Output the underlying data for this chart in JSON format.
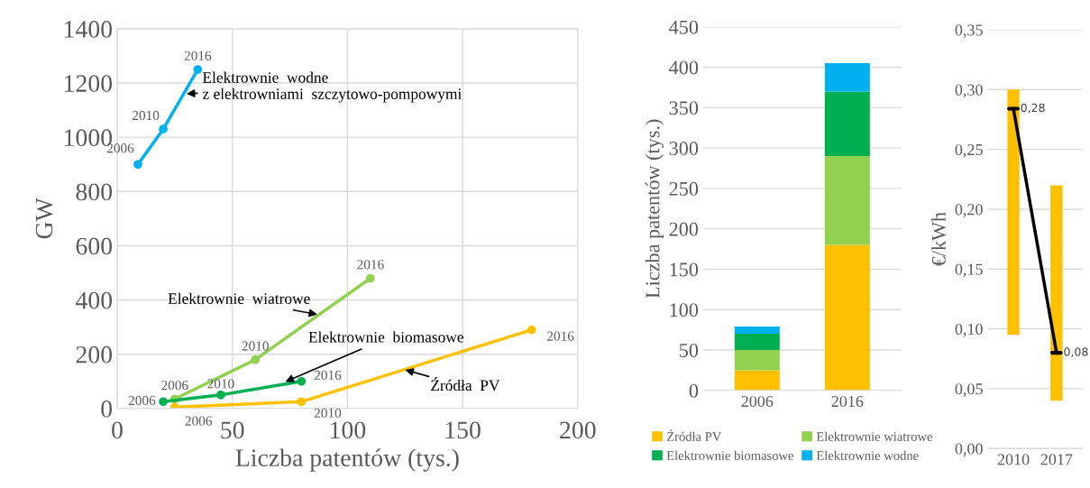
{
  "chart_data": [
    {
      "type": "line",
      "xlabel": "Liczba patentów (tys.)",
      "ylabel": "GW",
      "xlim": [
        0,
        200
      ],
      "ylim": [
        0,
        1400
      ],
      "xticks": [
        0,
        50,
        100,
        150,
        200
      ],
      "yticks": [
        0,
        200,
        400,
        600,
        800,
        1000,
        1200,
        1400
      ],
      "grid": true,
      "marker": "circle",
      "line_style": "solid",
      "series": [
        {
          "color": "#00b0f0",
          "x": [
            9,
            20,
            35
          ],
          "values": [
            900,
            1030,
            1250
          ]
        },
        {
          "color": "#92d050",
          "x": [
            25,
            60,
            110
          ],
          "values": [
            35,
            180,
            480
          ]
        },
        {
          "color": "#00b050",
          "x": [
            20,
            45,
            80
          ],
          "values": [
            25,
            50,
            100
          ]
        },
        {
          "color": "#ffc000",
          "x": [
            25,
            80,
            180
          ],
          "values": [
            5,
            25,
            290
          ]
        }
      ],
      "annotations": [
        {
          "text": "Elektrownie  wodne\nz elektrowniami  szczytowo-pompowymi",
          "x": 29,
          "y": 1160
        },
        {
          "text": "Elektrownie  wiatrowe",
          "x": 88,
          "y": 345
        },
        {
          "text": "Elektrownie  biomasowe",
          "x": 72,
          "y": 95
        },
        {
          "text": "Źródła  PV",
          "x": 124,
          "y": 145
        },
        {
          "text": "2006",
          "x": 9,
          "y": 900
        },
        {
          "text": "2010",
          "x": 20,
          "y": 1030
        },
        {
          "text": "2016",
          "x": 35,
          "y": 1250
        },
        {
          "text": "2006",
          "x": 25,
          "y": 35
        },
        {
          "text": "2010",
          "x": 60,
          "y": 180
        },
        {
          "text": "2016",
          "x": 110,
          "y": 480
        },
        {
          "text": "2006",
          "x": 20,
          "y": 25
        },
        {
          "text": "2010",
          "x": 45,
          "y": 50
        },
        {
          "text": "2016",
          "x": 80,
          "y": 100
        },
        {
          "text": "2006",
          "x": 25,
          "y": 5
        },
        {
          "text": "2010",
          "x": 80,
          "y": 25
        },
        {
          "text": "2016",
          "x": 180,
          "y": 290
        }
      ]
    },
    {
      "type": "bar",
      "stacked": true,
      "ylabel": "Liczba patentów (tys.)",
      "categories": [
        "2006",
        "2016"
      ],
      "ylim": [
        0,
        450
      ],
      "yticks": [
        0,
        50,
        100,
        150,
        200,
        250,
        300,
        350,
        400,
        450
      ],
      "grid": "y",
      "legend": "bottom",
      "series": [
        {
          "name": "Źródła PV",
          "color": "#ffc000",
          "values": [
            25,
            180
          ]
        },
        {
          "name": "Elektrownie wiatrowe",
          "color": "#92d050",
          "values": [
            25,
            110
          ]
        },
        {
          "name": "Elektrownie biomasowe",
          "color": "#00b050",
          "values": [
            20,
            80
          ]
        },
        {
          "name": "Elektrownie wodne",
          "color": "#00b0f0",
          "values": [
            9,
            35
          ]
        }
      ]
    },
    {
      "type": "bar",
      "ylabel": "€/kWh",
      "categories": [
        "2010",
        "2017"
      ],
      "ylim": [
        0,
        0.35
      ],
      "yticks": [
        {
          "value": 0,
          "label": "0,00"
        },
        {
          "value": 0.05,
          "label": "0,05"
        },
        {
          "value": 0.1,
          "label": "0,10"
        },
        {
          "value": 0.15,
          "label": "0,15"
        },
        {
          "value": 0.2,
          "label": "0,20"
        },
        {
          "value": 0.25,
          "label": "0,25"
        },
        {
          "value": 0.3,
          "label": "0,30"
        },
        {
          "value": 0.35,
          "label": "0,35"
        }
      ],
      "grid": "y",
      "series": [
        {
          "type": "bar",
          "color": "#ffc000",
          "base": [
            0.095,
            0.04
          ],
          "values": [
            0.205,
            0.18
          ]
        },
        {
          "type": "line",
          "color": "#000000",
          "values": [
            0.284,
            0.08
          ],
          "value_labels": [
            "0,28",
            "0,08"
          ]
        }
      ]
    }
  ]
}
